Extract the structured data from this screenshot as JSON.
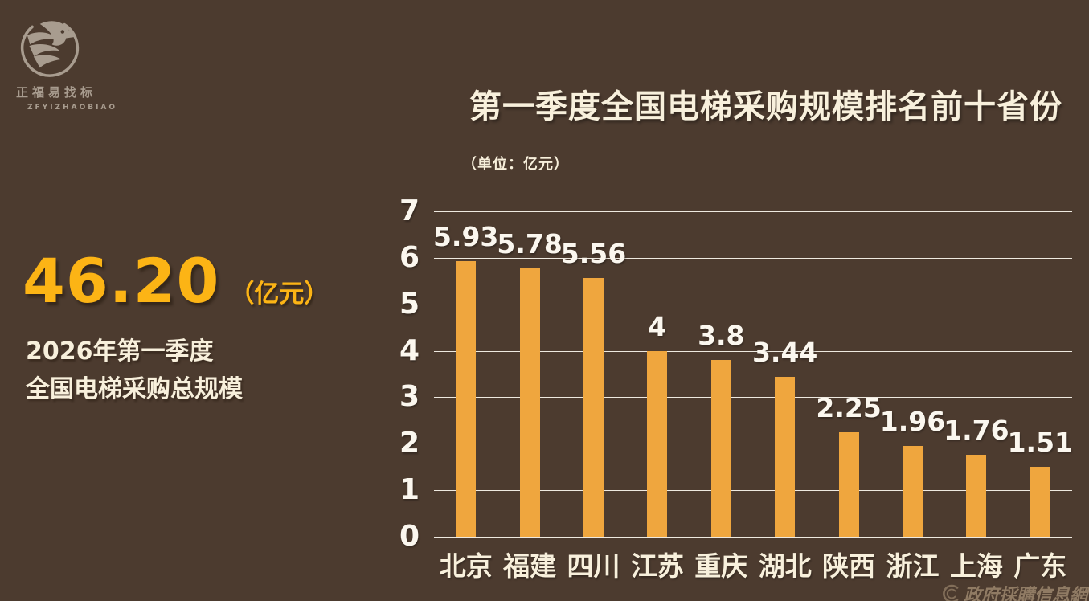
{
  "brand": {
    "logo_text": "正福易找标",
    "logo_subtext": "ZFYIZHAOBIAO"
  },
  "header": {
    "title": "第一季度全国电梯采购规模排名前十省份",
    "unit_note": "（单位：亿元）"
  },
  "summary": {
    "value": "46.20",
    "unit": "（亿元）",
    "caption_line1": "2026年第一季度",
    "caption_line2": "全国电梯采购总规模"
  },
  "watermark": {
    "icon": "crescent-icon",
    "text": "政府採購信息網"
  },
  "colors": {
    "background": "#4C3B2F",
    "bar": "#EFA63E",
    "accent_yellow": "#FCB415",
    "cream_text": "#F8F0DC",
    "chart_text": "#FBF7EF",
    "logo_gray": "#A89C8F",
    "watermark_tan": "rgba(200,176,144,0.55)"
  },
  "chart_data": {
    "type": "bar",
    "title": "第一季度全国电梯采购规模排名前十省份",
    "unit": "亿元",
    "categories": [
      "北京",
      "福建",
      "四川",
      "江苏",
      "重庆",
      "湖北",
      "陕西",
      "浙江",
      "上海",
      "广东"
    ],
    "values": [
      5.93,
      5.78,
      5.56,
      4,
      3.8,
      3.44,
      2.25,
      1.96,
      1.76,
      1.51
    ],
    "value_labels": [
      "5.93",
      "5.78",
      "5.56",
      "4",
      "3.8",
      "3.44",
      "2.25",
      "1.96",
      "1.76",
      "1.51"
    ],
    "xlabel": "",
    "ylabel": "",
    "ylim": [
      0,
      7
    ],
    "yticks": [
      0,
      1,
      2,
      3,
      4,
      5,
      6,
      7
    ],
    "grid": true,
    "legend": false
  }
}
